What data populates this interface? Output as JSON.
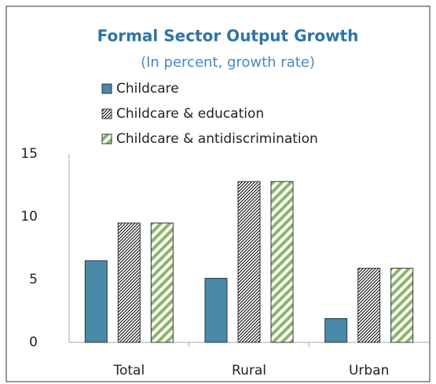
{
  "chart_data": {
    "type": "bar",
    "title": "Formal Sector Output Growth",
    "subtitle": "(In percent, growth rate)",
    "categories": [
      "Total",
      "Rural",
      "Urban"
    ],
    "series": [
      {
        "name": "Childcare",
        "color": "#4a89a8",
        "values": [
          6.5,
          5.1,
          1.9
        ]
      },
      {
        "name": "Childcare & education",
        "color": "#000000",
        "values": [
          9.5,
          12.8,
          5.9
        ]
      },
      {
        "name": "Childcare & antidiscrimination",
        "color": "#8bb56a",
        "values": [
          9.5,
          12.8,
          5.9
        ]
      }
    ],
    "ylim": [
      0,
      15
    ],
    "yticks": [
      0,
      5,
      10,
      15
    ],
    "grid": false
  }
}
